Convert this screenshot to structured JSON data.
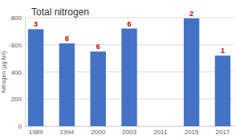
{
  "chart_data": {
    "type": "bar",
    "title": "Total nitrogen",
    "y_label": "Nitrogen (µg N/l)",
    "categories": [
      "1989",
      "1994",
      "2000",
      "2003",
      "2011",
      "2015",
      "2017"
    ],
    "values": [
      715,
      610,
      550,
      720,
      null,
      795,
      520
    ],
    "annotations": [
      3,
      6,
      6,
      6,
      null,
      2,
      1
    ],
    "color": "#4472c4",
    "ylim": [
      0,
      800
    ],
    "yticks": [
      0,
      200,
      400,
      600,
      800
    ],
    "grid": true
  }
}
